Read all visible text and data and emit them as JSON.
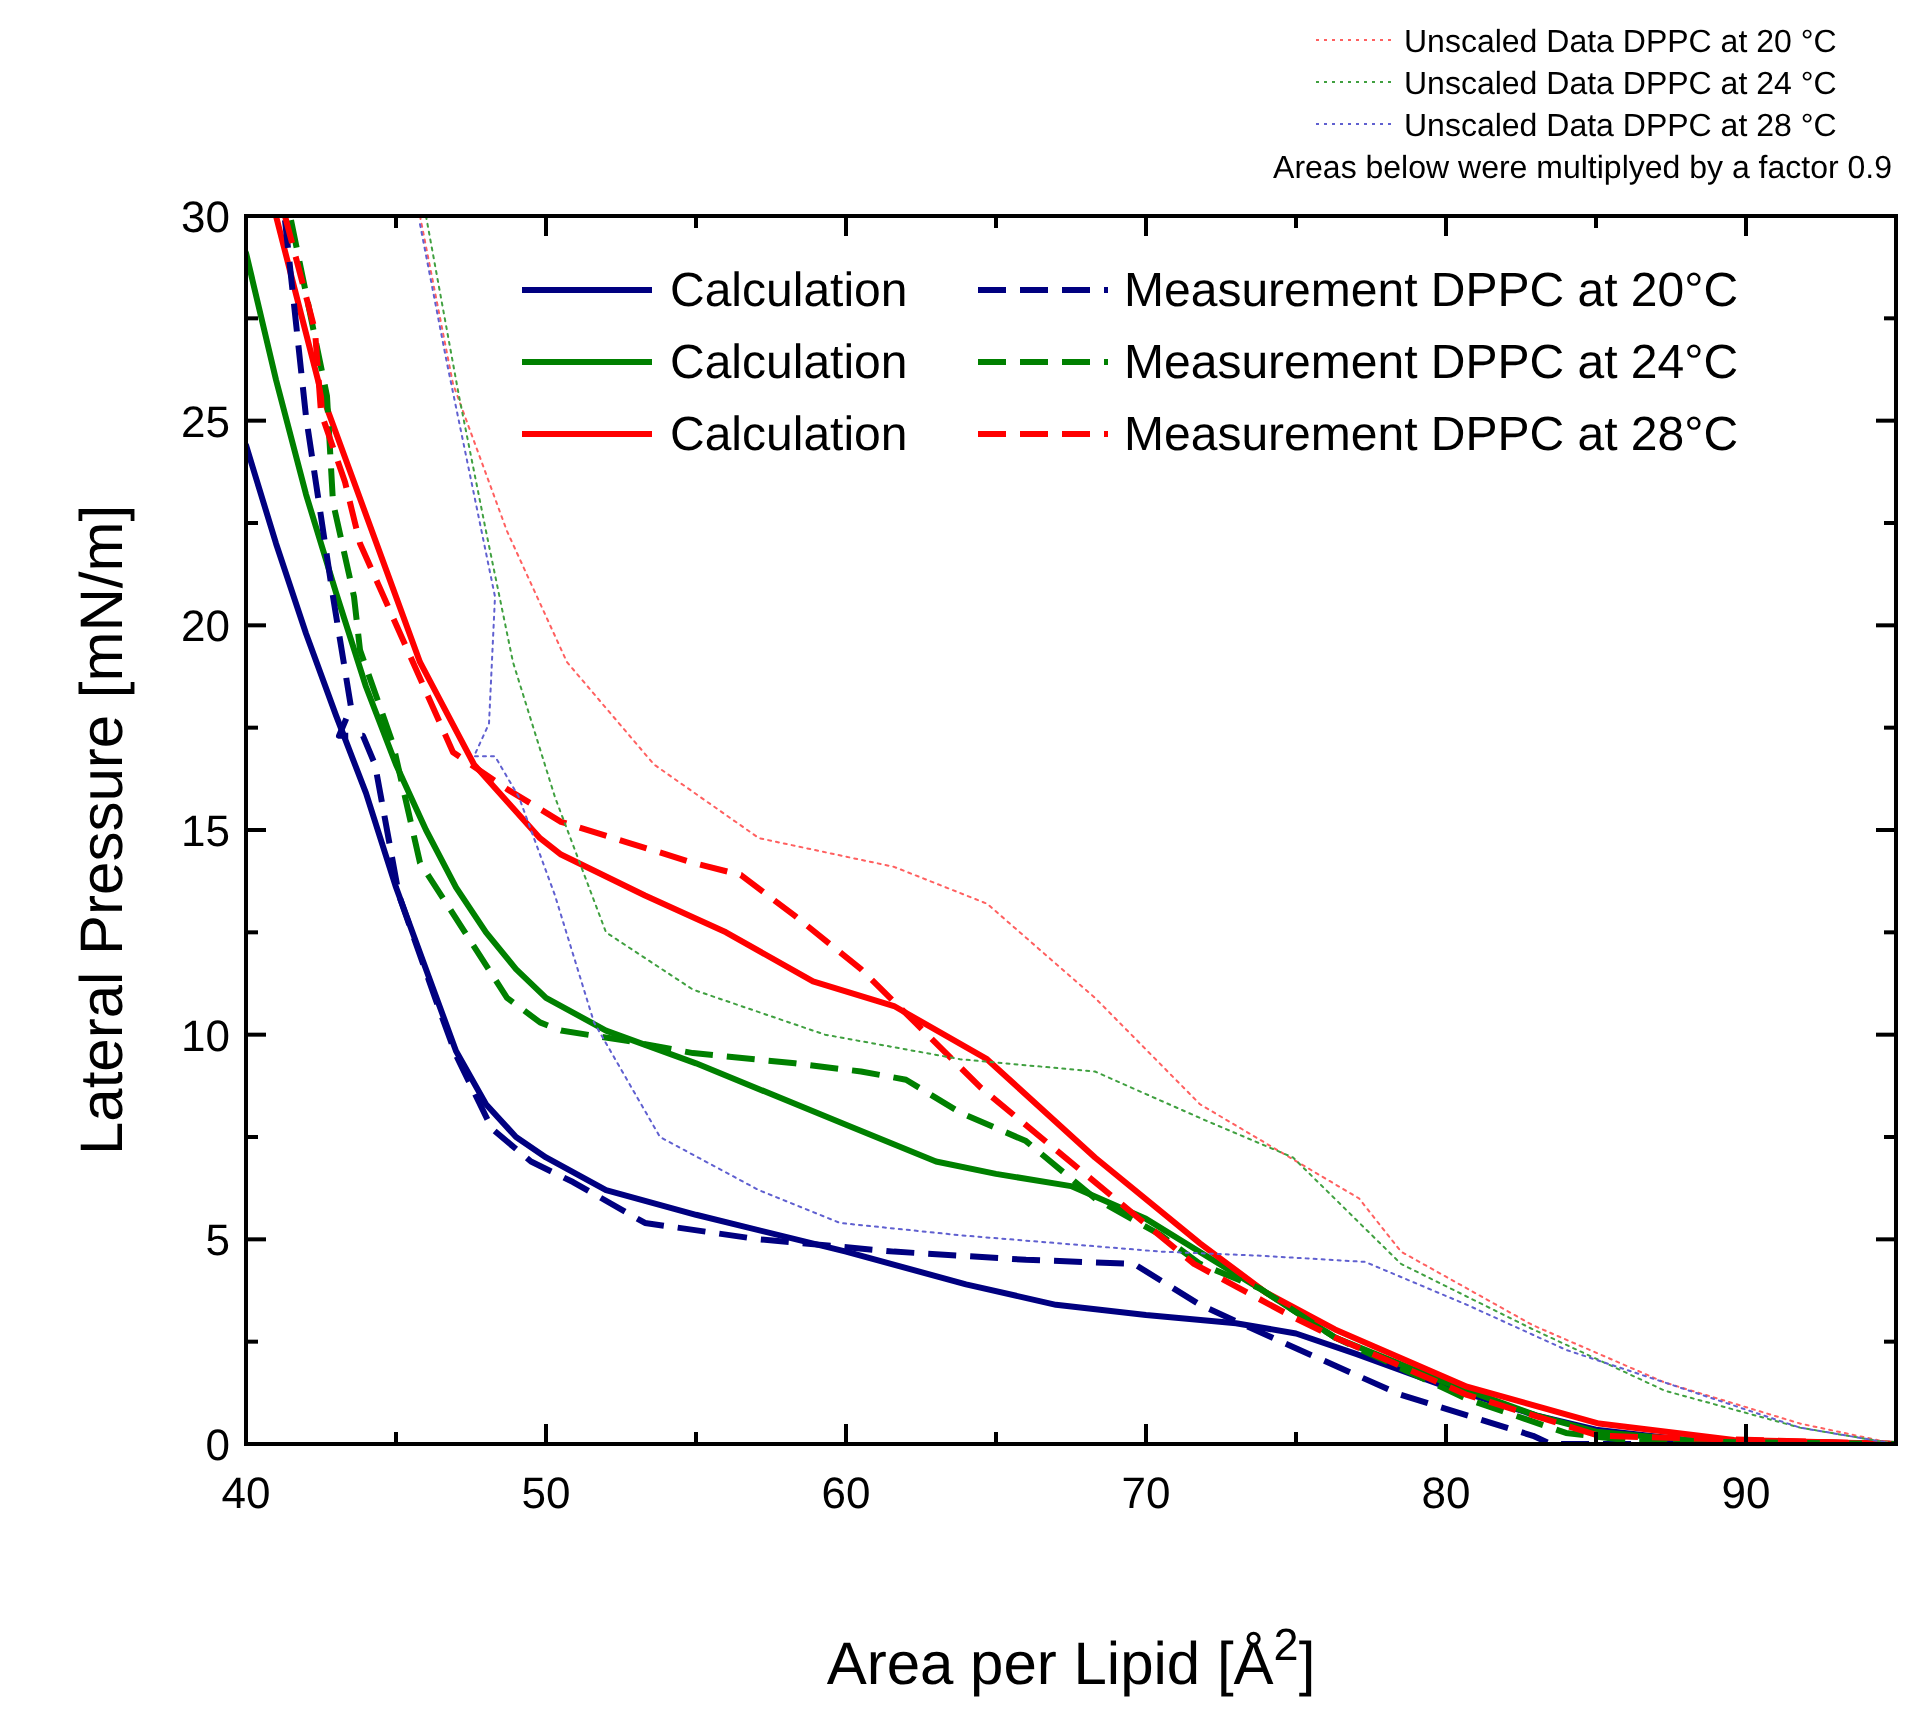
{
  "chart_data": {
    "type": "line",
    "xlabel": "Area per Lipid [Å$^{2}$]",
    "ylabel": "Lateral Pressure [mN/m]",
    "xlim": [
      40,
      95
    ],
    "ylim": [
      0,
      30
    ],
    "xticks": [
      40,
      {
        "value": 45,
        "label": null
      },
      50,
      {
        "value": 55,
        "label": null
      },
      60,
      {
        "value": 65,
        "label": null
      },
      70,
      {
        "value": 75,
        "label": null
      },
      80,
      {
        "value": 85,
        "label": null
      },
      90,
      {
        "value": 95,
        "label": null
      }
    ],
    "yticks": [
      0,
      {
        "value": 2.5,
        "label": null
      },
      5,
      {
        "value": 7.5,
        "label": null
      },
      10,
      {
        "value": 12.5,
        "label": null
      },
      15,
      {
        "value": 17.5,
        "label": null
      },
      20,
      {
        "value": 22.5,
        "label": null
      },
      25,
      {
        "value": 27.5,
        "label": null
      },
      30
    ],
    "grid": false,
    "legend": "top right",
    "marker": "none",
    "annotations": [
      "Areas below were multiplyed by a factor 0.9"
    ],
    "series": [
      {
        "name": "Calculation",
        "color": "#000080",
        "line_style": "solid",
        "x": [
          40,
          41,
          42,
          43,
          44,
          45,
          46,
          47,
          48,
          49,
          50,
          52,
          55,
          60,
          64,
          67,
          70,
          73,
          75,
          77,
          80,
          83,
          85,
          88,
          95
        ],
        "values": [
          24.4,
          22.0,
          19.8,
          17.8,
          15.9,
          13.6,
          11.6,
          9.6,
          8.3,
          7.5,
          7.0,
          6.2,
          5.6,
          4.7,
          3.9,
          3.4,
          3.15,
          2.95,
          2.7,
          2.2,
          1.4,
          0.7,
          0.35,
          0.1,
          0
        ]
      },
      {
        "name": "Calculation",
        "color": "#008000",
        "line_style": "solid",
        "x": [
          40,
          41,
          42,
          43,
          44,
          45,
          46,
          47,
          48,
          49,
          50,
          52,
          55,
          60,
          63,
          65,
          67.5,
          70,
          72,
          74,
          76.3,
          80,
          83,
          85,
          88,
          95
        ],
        "values": [
          29.1,
          26.0,
          23.2,
          20.8,
          18.5,
          16.6,
          15.0,
          13.6,
          12.5,
          11.6,
          10.9,
          10.1,
          9.3,
          7.8,
          6.9,
          6.6,
          6.3,
          5.5,
          4.6,
          3.7,
          2.6,
          1.5,
          0.7,
          0.3,
          0.1,
          0
        ]
      },
      {
        "name": "Calculation",
        "color": "#ff0000",
        "line_style": "solid",
        "x": [
          41,
          42.5,
          43.6,
          44.7,
          45.8,
          47.6,
          49.8,
          50.5,
          53.3,
          56,
          58.9,
          61.6,
          64.7,
          68.3,
          71.8,
          74,
          76.3,
          80.7,
          85.1,
          89.6,
          95
        ],
        "values": [
          30,
          25.7,
          23.5,
          21.3,
          19.1,
          16.6,
          14.8,
          14.4,
          13.4,
          12.5,
          11.3,
          10.7,
          9.4,
          7.0,
          4.9,
          3.7,
          2.8,
          1.4,
          0.5,
          0.1,
          0
        ]
      },
      {
        "name": "Measurement DPPC at 20°C",
        "color": "#000080",
        "line_style": "dashed",
        "x": [
          41.3,
          42.0,
          42.9,
          43.5,
          43.1,
          43.9,
          44.3,
          45.1,
          46.3,
          47,
          48.2,
          49.5,
          50.9,
          53.3,
          57.1,
          61.6,
          66,
          69.6,
          71.8,
          74.5,
          78.5,
          82.9,
          83.5,
          95
        ],
        "values": [
          29.9,
          25.1,
          20.7,
          18.0,
          17.3,
          17.3,
          16.6,
          13.4,
          10.9,
          9.5,
          7.7,
          6.9,
          6.4,
          5.4,
          5.0,
          4.7,
          4.5,
          4.4,
          3.4,
          2.5,
          1.2,
          0.2,
          0,
          0
        ]
      },
      {
        "name": "Measurement DPPC at 24°C",
        "color": "#008000",
        "line_style": "dashed",
        "x": [
          41.5,
          42.7,
          42.9,
          43.6,
          43.8,
          44.9,
          45.8,
          47.3,
          48.7,
          49.8,
          50.5,
          52.7,
          54.9,
          58.3,
          60.5,
          62,
          63.8,
          66,
          68.3,
          70.5,
          71.8,
          73.8,
          76.3,
          80.7,
          84,
          86.3,
          95
        ],
        "values": [
          29.9,
          25.6,
          23.0,
          20.7,
          19.4,
          17.1,
          14.2,
          12.5,
          10.9,
          10.3,
          10.1,
          9.85,
          9.55,
          9.3,
          9.1,
          8.9,
          8.1,
          7.4,
          6.0,
          5.1,
          4.4,
          3.8,
          2.6,
          1.1,
          0.27,
          0.07,
          0
        ]
      },
      {
        "name": "Measurement DPPC at 28°C",
        "color": "#ff0000",
        "line_style": "dashed",
        "x": [
          41.3,
          42.3,
          42.5,
          43.3,
          43.8,
          46.9,
          48.7,
          50.5,
          52.7,
          54.9,
          56.5,
          58.3,
          60.5,
          62.3,
          64.5,
          67.8,
          71.6,
          74.9,
          76.3,
          80.7,
          85.1,
          95
        ],
        "values": [
          30,
          27.2,
          25.2,
          23.5,
          22.0,
          16.9,
          16.0,
          15.2,
          14.7,
          14.2,
          13.9,
          12.9,
          11.6,
          10.3,
          8.7,
          6.7,
          4.4,
          3.1,
          2.6,
          1.2,
          0.2,
          0
        ]
      },
      {
        "name": "Unscaled Data DPPC at 20 °C",
        "color": "#ff6060",
        "line_style": "dotted",
        "x": [
          45.8,
          46.9,
          48.7,
          50.7,
          53.6,
          57.1,
          61.6,
          64.7,
          68.3,
          71.8,
          77.1,
          78.5,
          82.9,
          87.3,
          91.8,
          95
        ],
        "values": [
          30,
          25.9,
          22.3,
          19.1,
          16.6,
          14.8,
          14.1,
          13.2,
          10.9,
          8.3,
          6.0,
          4.7,
          2.9,
          1.5,
          0.5,
          0
        ]
      },
      {
        "name": "Unscaled Data DPPC at 24 °C",
        "color": "#40a040",
        "line_style": "dotted",
        "x": [
          46,
          47.1,
          48,
          48.9,
          50.3,
          52,
          54.9,
          59.3,
          63.8,
          68.3,
          72,
          74.9,
          78.5,
          82.9,
          87.3,
          91.8,
          95
        ],
        "values": [
          30,
          25.6,
          22.3,
          19.1,
          15.8,
          12.5,
          11.1,
          10.0,
          9.4,
          9.1,
          7.9,
          7.0,
          4.4,
          2.8,
          1.3,
          0.4,
          0
        ]
      },
      {
        "name": "Unscaled Data DPPC at 28 °C",
        "color": "#6060d0",
        "line_style": "dotted",
        "x": [
          45.8,
          46.7,
          47.6,
          48.3,
          48.1,
          47.6,
          48.3,
          49.1,
          50.3,
          51.6,
          53.8,
          57.1,
          59.8,
          63.8,
          70.5,
          73.8,
          77.3,
          80.7,
          84,
          87.3,
          91.8,
          95
        ],
        "values": [
          29.8,
          26.4,
          23.2,
          20.7,
          17.6,
          16.8,
          16.8,
          15.8,
          13.4,
          10.3,
          7.5,
          6.2,
          5.4,
          5.1,
          4.7,
          4.6,
          4.45,
          3.4,
          2.3,
          1.5,
          0.4,
          0
        ]
      }
    ]
  }
}
